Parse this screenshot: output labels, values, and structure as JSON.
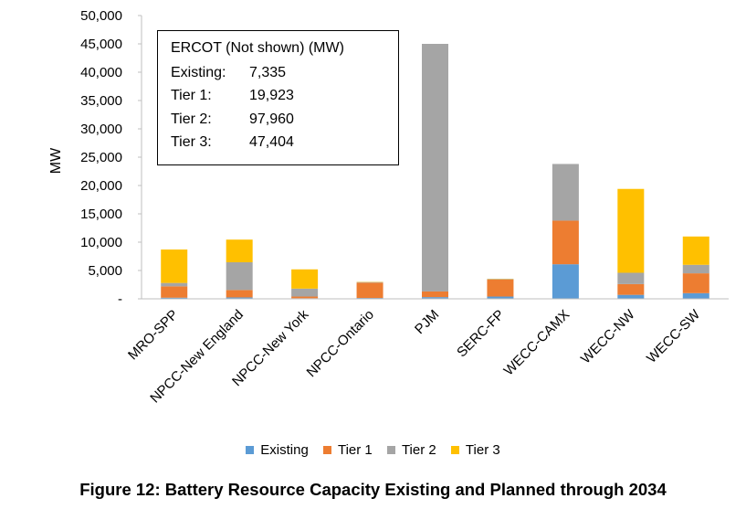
{
  "chart_data": {
    "type": "bar",
    "stacked": true,
    "categories": [
      "MRO-SPP",
      "NPCC-New England",
      "NPCC-New York",
      "NPCC-Ontario",
      "PJM",
      "SERC-FP",
      "WECC-CAMX",
      "WECC-NW",
      "WECC-SW"
    ],
    "series": [
      {
        "name": "Existing",
        "color": "#5B9BD5",
        "values": [
          200,
          250,
          100,
          150,
          300,
          400,
          6100,
          700,
          1000
        ]
      },
      {
        "name": "Tier 1",
        "color": "#ED7D31",
        "values": [
          2000,
          1300,
          300,
          2700,
          1000,
          3000,
          7700,
          1900,
          3500
        ]
      },
      {
        "name": "Tier 2",
        "color": "#A5A5A5",
        "values": [
          600,
          4900,
          1400,
          100,
          43700,
          100,
          10000,
          2000,
          1500
        ]
      },
      {
        "name": "Tier 3",
        "color": "#FFC000",
        "values": [
          5900,
          4000,
          3400,
          50,
          0,
          50,
          0,
          14800,
          5000
        ]
      }
    ],
    "ylabel": "MW",
    "ylim": [
      0,
      50000
    ],
    "yticks": [
      0,
      5000,
      10000,
      15000,
      20000,
      25000,
      30000,
      35000,
      40000,
      45000,
      50000
    ],
    "ytick_labels": [
      "-",
      "5,000",
      "10,000",
      "15,000",
      "20,000",
      "25,000",
      "30,000",
      "35,000",
      "40,000",
      "45,000",
      "50,000"
    ],
    "grid": false,
    "legend_position": "bottom"
  },
  "annotation": {
    "title": "ERCOT (Not shown) (MW)",
    "rows": [
      {
        "label": "Existing:",
        "value": "7,335"
      },
      {
        "label": "Tier 1:",
        "value": "19,923"
      },
      {
        "label": "Tier 2:",
        "value": "97,960"
      },
      {
        "label": "Tier 3:",
        "value": "47,404"
      }
    ]
  },
  "caption": "Figure 12: Battery Resource Capacity Existing and Planned through 2034"
}
